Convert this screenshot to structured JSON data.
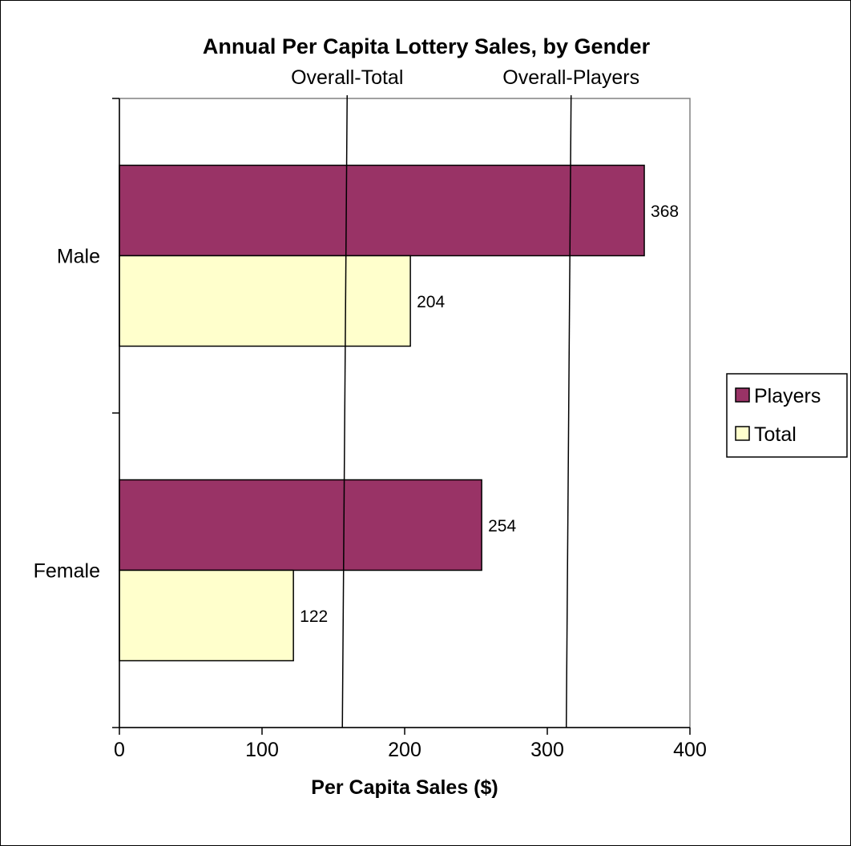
{
  "chart_data": {
    "type": "bar",
    "orientation": "horizontal",
    "title": "Annual Per Capita Lottery Sales, by Gender",
    "xlabel": "Per Capita Sales ($)",
    "ylabel": "",
    "categories": [
      "Male",
      "Female"
    ],
    "series": [
      {
        "name": "Players",
        "values": [
          368,
          254
        ],
        "color": "#993366"
      },
      {
        "name": "Total",
        "values": [
          204,
          122
        ],
        "color": "#FFFFCC"
      }
    ],
    "xlim": [
      0,
      400
    ],
    "xticks": [
      0,
      100,
      200,
      300,
      400
    ],
    "grid": false,
    "legend_position": "right",
    "data_labels": true,
    "reference_lines": [
      {
        "label": "Overall-Total",
        "value": 158
      },
      {
        "label": "Overall-Players",
        "value": 315
      }
    ]
  }
}
